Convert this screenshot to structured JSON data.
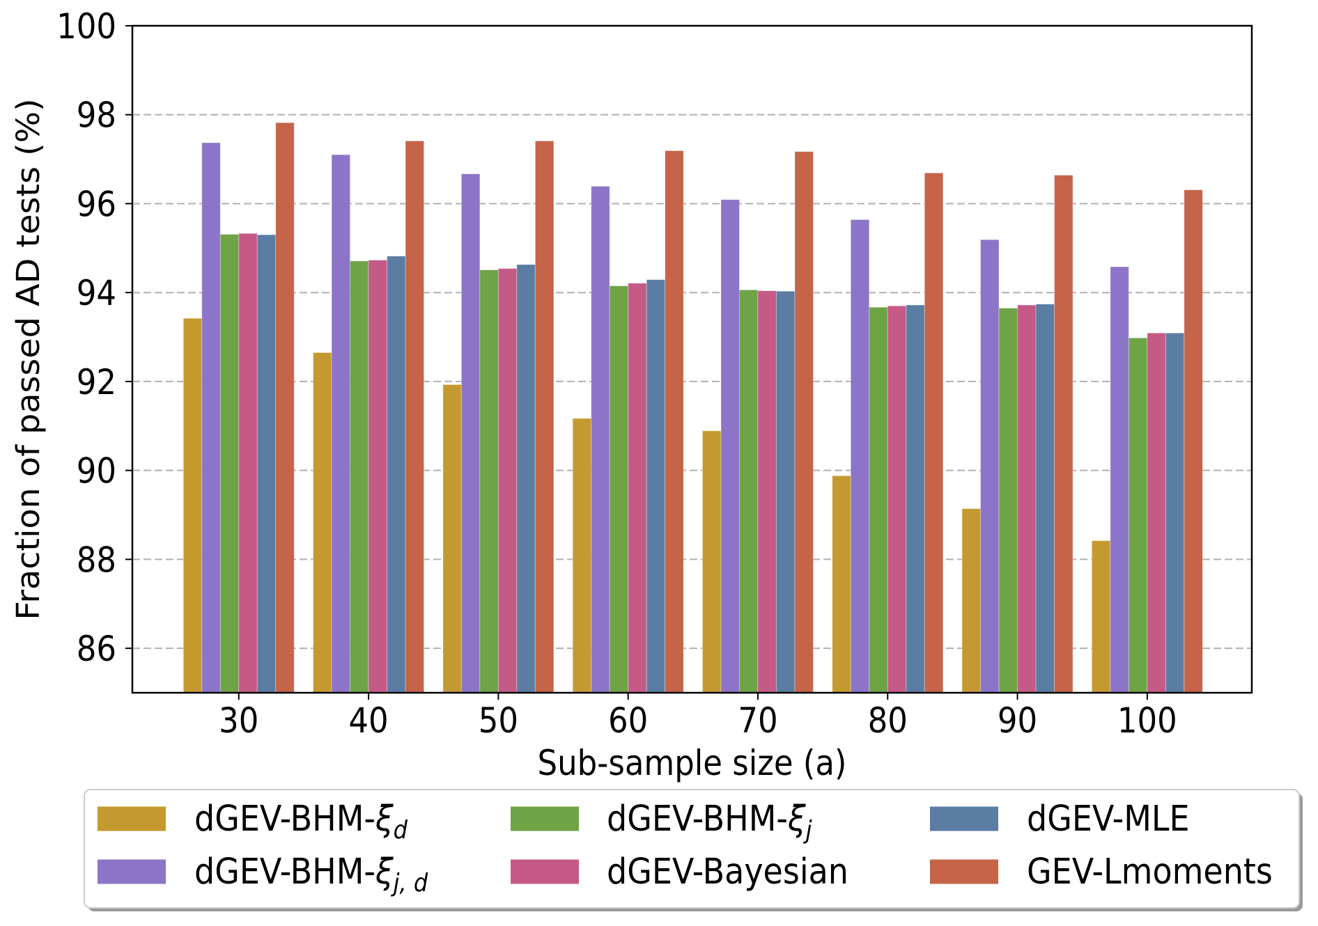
{
  "chart_data": {
    "type": "bar",
    "title": "",
    "xlabel": "Sub-sample size (a)",
    "ylabel": "Fraction of passed AD tests (%)",
    "categories": [
      "30",
      "40",
      "50",
      "60",
      "70",
      "80",
      "90",
      "100"
    ],
    "x": [
      30,
      40,
      50,
      60,
      70,
      80,
      90,
      100
    ],
    "xlim": [
      21.8,
      108.06
    ],
    "ylim": [
      85,
      100
    ],
    "yticks": [
      86,
      88,
      90,
      92,
      94,
      96,
      98,
      100
    ],
    "grid": true,
    "legend": "bottom",
    "series": [
      {
        "label": {
          "prefix": "dGEV-BHM-",
          "symbol": "ξ",
          "sub": "d"
        },
        "color": "#c49a30",
        "values": [
          93.42,
          92.65,
          91.93,
          91.17,
          90.89,
          89.88,
          89.14,
          88.42
        ]
      },
      {
        "label": {
          "prefix": "dGEV-BHM-",
          "symbol": "ξ",
          "sub": "j, d"
        },
        "color": "#8c75c8",
        "values": [
          97.37,
          97.1,
          96.67,
          96.39,
          96.09,
          95.64,
          95.19,
          94.58
        ]
      },
      {
        "label": {
          "prefix": "dGEV-BHM-",
          "symbol": "ξ",
          "sub": "j"
        },
        "color": "#6ea346",
        "values": [
          95.31,
          94.71,
          94.51,
          94.15,
          94.06,
          93.67,
          93.65,
          92.98
        ]
      },
      {
        "label": {
          "prefix": "dGEV-Bayesian"
        },
        "color": "#c55a87",
        "values": [
          95.33,
          94.73,
          94.54,
          94.21,
          94.04,
          93.7,
          93.72,
          93.09
        ]
      },
      {
        "label": {
          "prefix": "dGEV-MLE"
        },
        "color": "#5b7da4",
        "values": [
          95.3,
          94.82,
          94.63,
          94.29,
          94.03,
          93.72,
          93.74,
          93.09
        ]
      },
      {
        "label": {
          "prefix": "GEV-Lmoments"
        },
        "color": "#c56448",
        "values": [
          97.82,
          97.41,
          97.41,
          97.19,
          97.17,
          96.69,
          96.64,
          96.31
        ]
      }
    ]
  }
}
